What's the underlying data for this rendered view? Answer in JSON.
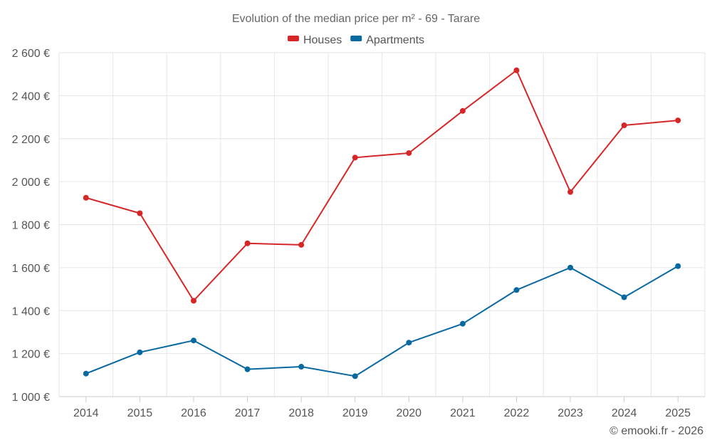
{
  "chart_data": {
    "type": "line",
    "title": "Evolution of the median price per m² - 69 - Tarare",
    "categories": [
      "2014",
      "2015",
      "2016",
      "2017",
      "2018",
      "2019",
      "2020",
      "2021",
      "2022",
      "2023",
      "2024",
      "2025"
    ],
    "series": [
      {
        "name": "Houses",
        "color": "#d62728",
        "values": [
          1925,
          1853,
          1446,
          1713,
          1706,
          2112,
          2133,
          2329,
          2518,
          1952,
          2262,
          2285
        ]
      },
      {
        "name": "Apartments",
        "color": "#0868a0",
        "values": [
          1107,
          1206,
          1261,
          1127,
          1139,
          1095,
          1251,
          1339,
          1496,
          1600,
          1462,
          1607
        ]
      }
    ],
    "ylim": [
      1000,
      2600
    ],
    "yticks": [
      1000,
      1200,
      1400,
      1600,
      1800,
      2000,
      2200,
      2400,
      2600
    ],
    "ytick_labels": [
      "1 000 €",
      "1 200 €",
      "1 400 €",
      "1 600 €",
      "1 800 €",
      "2 000 €",
      "2 200 €",
      "2 400 €",
      "2 600 €"
    ],
    "grid": true,
    "legend": "top-center",
    "xlabel": "",
    "ylabel": ""
  },
  "credit": "© emooki.fr - 2026"
}
